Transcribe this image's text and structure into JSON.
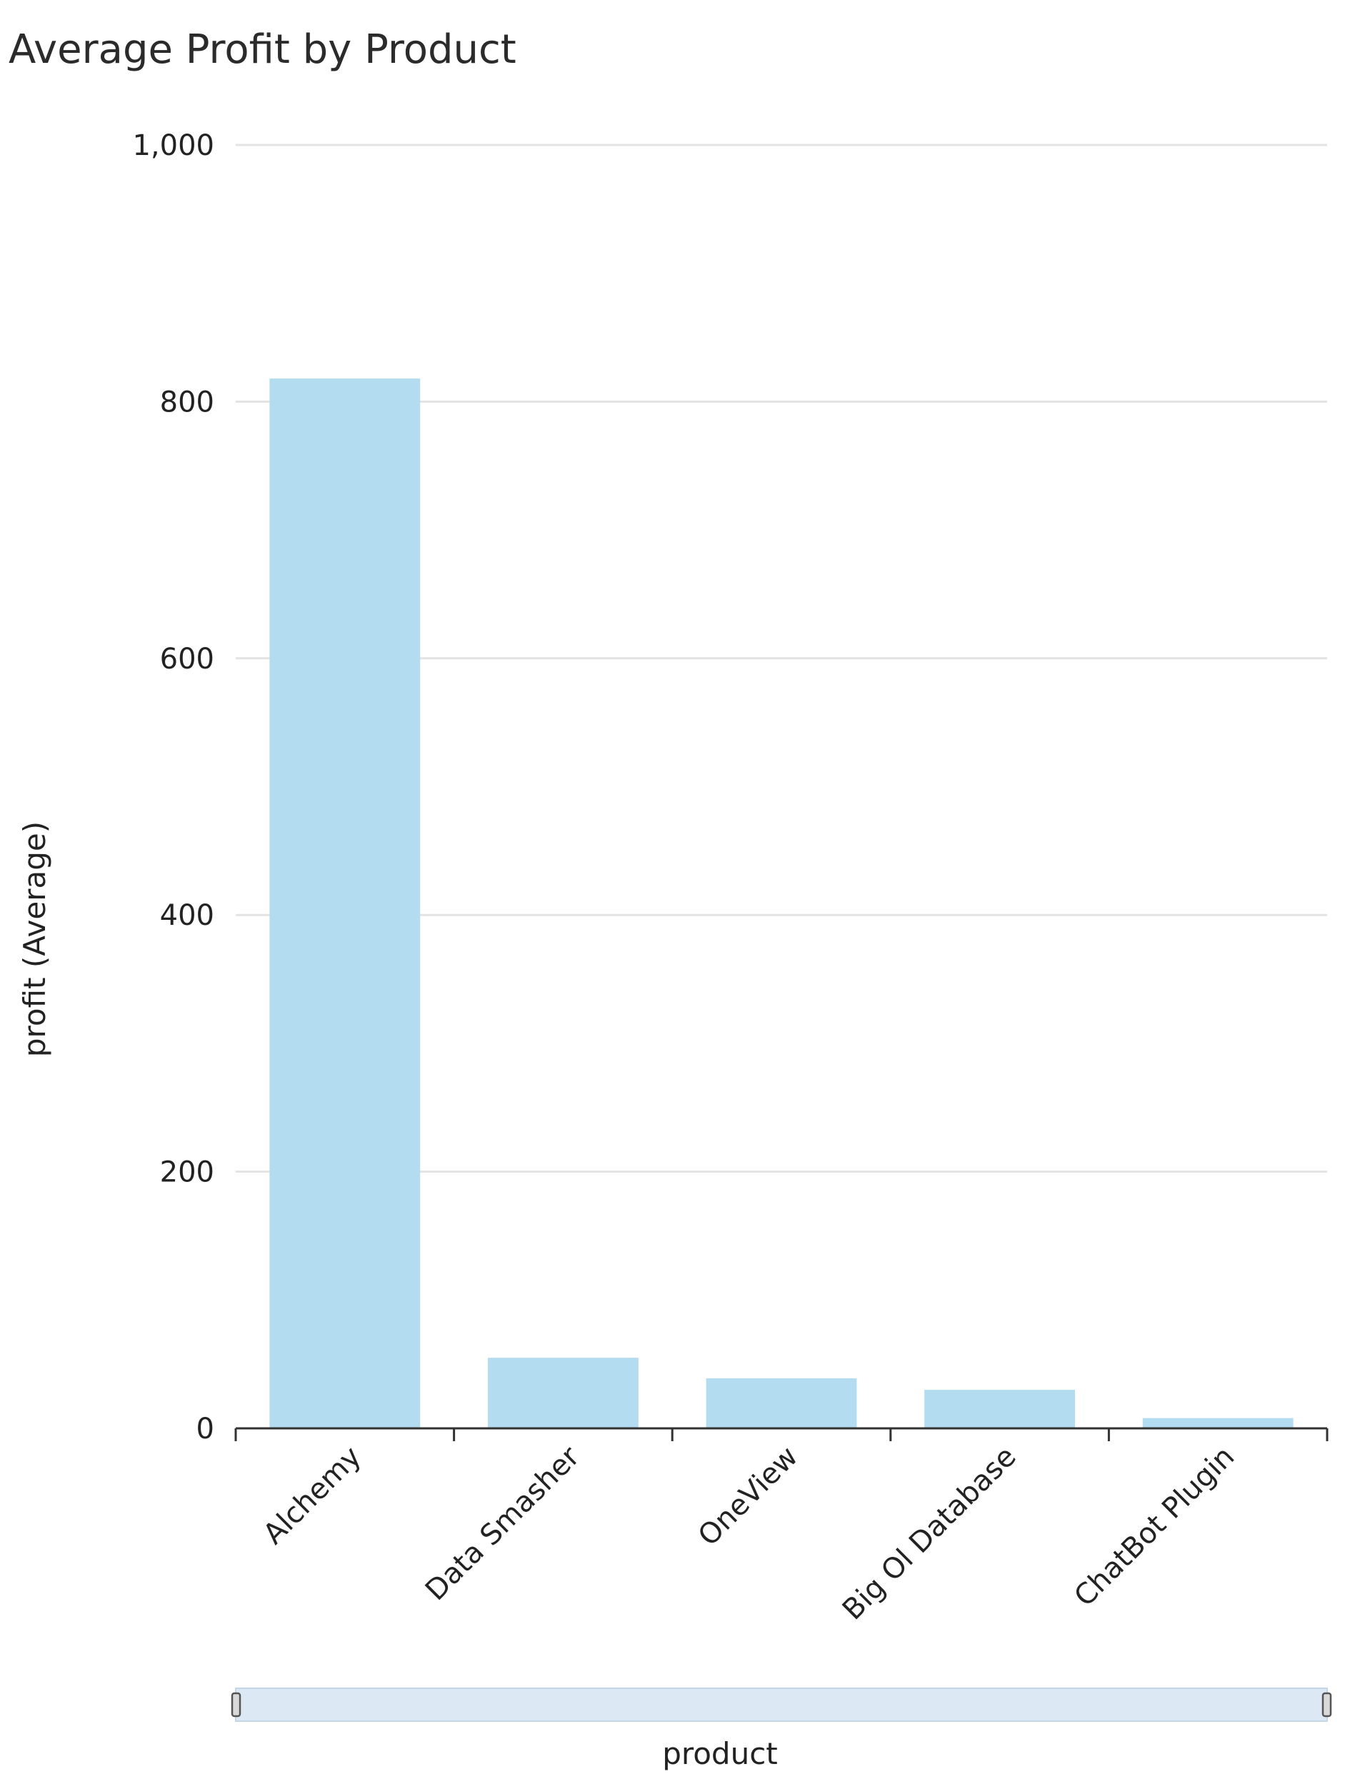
{
  "chart_data": {
    "type": "bar",
    "title": "Average Profit by Product",
    "xlabel": "product",
    "ylabel": "profit (Average)",
    "categories": [
      "Alchemy",
      "Data Smasher",
      "OneView",
      "Big Ol Database",
      "ChatBot Plugin"
    ],
    "series": [
      {
        "values": [
          818,
          55,
          39,
          30,
          8
        ]
      }
    ],
    "ylim": [
      0,
      1000
    ],
    "yticks": [
      0,
      200,
      400,
      600,
      800,
      1000
    ],
    "ytick_labels": [
      "0",
      "200",
      "400",
      "600",
      "800",
      "1,000"
    ],
    "grid": true,
    "legend": "none",
    "bar_color": "#b3dcf0",
    "range_scrollbar": true
  }
}
